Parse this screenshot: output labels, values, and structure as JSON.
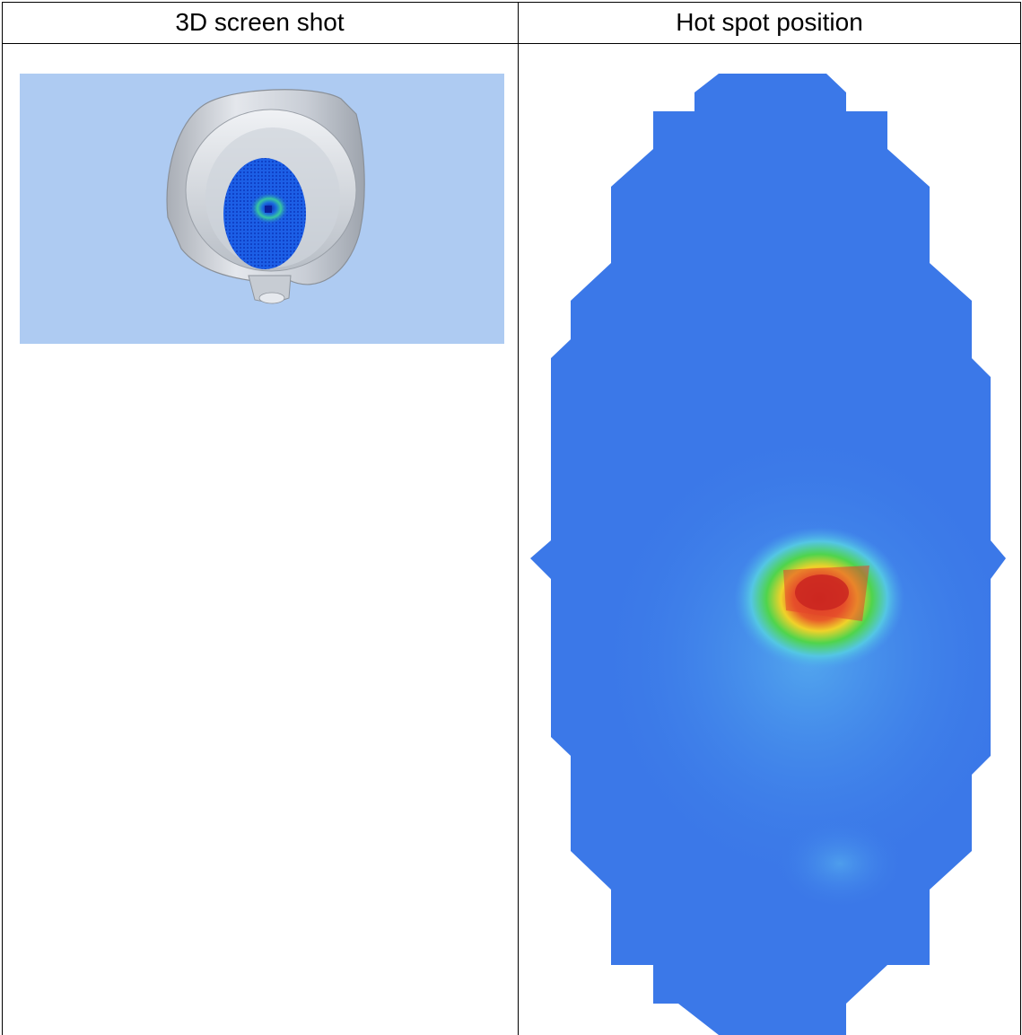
{
  "table": {
    "headers": [
      "3D screen shot",
      "Hot spot position"
    ]
  },
  "colors": {
    "viewport_bg": "#aecbf2",
    "field_base": "#3b78e8",
    "hotspot_core": "#d9302a"
  },
  "icons": {
    "screenshot": "3d-model-render",
    "heatmap": "hot-spot-map"
  }
}
